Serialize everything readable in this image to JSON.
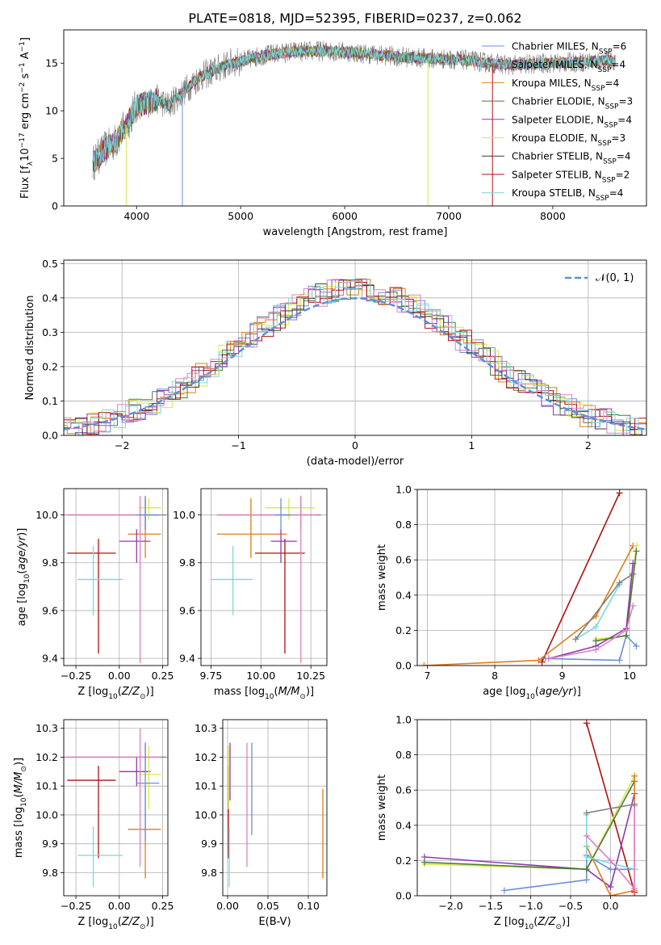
{
  "figure": {
    "title": "PLATE=0818, MJD=52395, FIBERID=0237, z=0.062"
  },
  "colors": {
    "Chabrier MILES": "#6a8fd8",
    "Salpeter MILES": "#808080",
    "Kroupa MILES": "#e07b1a",
    "Chabrier ELODIE": "#4a7a3a",
    "Salpeter ELODIE": "#8e3ab0",
    "Kroupa ELODIE": "#d8e84a",
    "Chabrier STELIB": "#3a3a3a",
    "Salpeter STELIB": "#b01010",
    "Kroupa STELIB": "#7dd8d8",
    "pink": "#e07fc0",
    "gaussian": "#5b8fd8"
  },
  "chart_data": [
    {
      "id": "spectrum",
      "type": "line",
      "title": "PLATE=0818, MJD=52395, FIBERID=0237, z=0.062",
      "xlabel": "wavelength [Angstrom, rest frame]",
      "ylabel": "Flux [fλ10⁻¹⁷ erg cm⁻² s⁻¹ A⁻¹]",
      "xlim": [
        3300,
        8900
      ],
      "ylim": [
        0,
        18.5
      ],
      "xticks": [
        4000,
        5000,
        6000,
        7000,
        8000
      ],
      "yticks": [
        0,
        5,
        10,
        15
      ],
      "grid": false,
      "legend_position": "top-right",
      "legend": [
        "Chabrier MILES, N_SSP=6",
        "Salpeter MILES, N_SSP=4",
        "Kroupa MILES, N_SSP=4",
        "Chabrier ELODIE, N_SSP=3",
        "Salpeter ELODIE, N_SSP=4",
        "Kroupa ELODIE, N_SSP=3",
        "Chabrier STELIB, N_SSP=4",
        "Salpeter STELIB, N_SSP=2",
        "Kroupa STELIB, N_SSP=4"
      ],
      "continuum": {
        "x": [
          3580,
          3700,
          3800,
          3900,
          4000,
          4100,
          4200,
          4300,
          4400,
          4500,
          4600,
          4700,
          4800,
          4900,
          5000,
          5200,
          5500,
          5800,
          6000,
          6200,
          6500,
          6800,
          7000,
          7200,
          7400,
          7600,
          7800,
          8000,
          8200,
          8400,
          8600
        ],
        "y": [
          4.5,
          6.0,
          6.8,
          8.5,
          10.5,
          10.8,
          11.2,
          10.5,
          11.5,
          12.5,
          13.5,
          14.0,
          14.5,
          15.0,
          15.2,
          15.8,
          16.2,
          16.3,
          16.2,
          16.0,
          15.7,
          15.5,
          15.4,
          15.3,
          15.0,
          14.8,
          14.9,
          15.0,
          15.1,
          15.2,
          15.3
        ]
      }
    },
    {
      "id": "residuals",
      "type": "line",
      "xlabel": "(data-model)/error",
      "ylabel": "Normed distribution",
      "xlim": [
        -2.5,
        2.5
      ],
      "ylim": [
        0,
        0.51
      ],
      "xticks": [
        -2,
        -1,
        0,
        1,
        2
      ],
      "yticks": [
        0.0,
        0.1,
        0.2,
        0.3,
        0.4,
        0.5
      ],
      "grid": true,
      "legend_position": "top-right",
      "legend": [
        "𝒩(0, 1)"
      ],
      "gaussian": {
        "mean": 0,
        "sigma": 1
      }
    },
    {
      "id": "age_vs_Z",
      "type": "scatter",
      "xlabel": "Z [log10(Z/Z⊙)]",
      "ylabel": "age  [log10(age/yr)]",
      "xlim": [
        -0.32,
        0.28
      ],
      "ylim": [
        9.37,
        10.11
      ],
      "xticks": [
        -0.25,
        0.0,
        0.25
      ],
      "yticks": [
        9.4,
        9.6,
        9.8,
        10.0
      ],
      "grid": true,
      "points": [
        {
          "model": "Salpeter STELIB",
          "x": -0.12,
          "y": 9.84,
          "xerr": [
            0.18,
            0.1
          ],
          "yerr": [
            0.42,
            0.06
          ]
        },
        {
          "model": "Kroupa STELIB",
          "x": -0.15,
          "y": 9.73,
          "xerr": [
            0.09,
            0.17
          ],
          "yerr": [
            0.15,
            0.14
          ]
        },
        {
          "model": "Salpeter MILES",
          "x": 0.15,
          "y": 10.0,
          "xerr": [
            0.45,
            0.12
          ],
          "yerr": [
            0.06,
            0.08
          ]
        },
        {
          "model": "Kroupa MILES",
          "x": 0.15,
          "y": 9.92,
          "xerr": [
            0.1,
            0.09
          ],
          "yerr": [
            0.1,
            0.15
          ]
        },
        {
          "model": "Salpeter ELODIE",
          "x": 0.1,
          "y": 9.89,
          "xerr": [
            0.1,
            0.08
          ],
          "yerr": [
            0.09,
            0.05
          ]
        },
        {
          "model": "Kroupa ELODIE",
          "x": 0.17,
          "y": 10.03,
          "xerr": [
            0.06,
            0.07
          ],
          "yerr": [
            0.05,
            0.04
          ]
        },
        {
          "model": "pink",
          "x": 0.12,
          "y": 10.0,
          "xerr": [
            0.45,
            0.12
          ],
          "yerr": [
            0.62,
            0.08
          ]
        },
        {
          "model": "Chabrier MILES",
          "x": 0.15,
          "y": 10.0,
          "xerr": [
            0.05,
            0.08
          ],
          "yerr": [
            0.06,
            0.07
          ]
        }
      ]
    },
    {
      "id": "age_vs_mass",
      "type": "scatter",
      "xlabel": "mass [log10(M/M⊙)]",
      "ylabel": "",
      "xlim": [
        9.7,
        10.33
      ],
      "ylim": [
        9.37,
        10.11
      ],
      "xticks": [
        9.75,
        10.0,
        10.25
      ],
      "yticks": [
        9.4,
        9.6,
        9.8,
        10.0
      ],
      "grid": true,
      "points": [
        {
          "model": "Salpeter STELIB",
          "x": 10.12,
          "y": 9.84,
          "xerr": [
            0.15,
            0.1
          ],
          "yerr": [
            0.42,
            0.06
          ]
        },
        {
          "model": "Kroupa STELIB",
          "x": 9.86,
          "y": 9.73,
          "xerr": [
            0.11,
            0.1
          ],
          "yerr": [
            0.15,
            0.14
          ]
        },
        {
          "model": "Salpeter MILES",
          "x": 10.2,
          "y": 10.0,
          "xerr": [
            0.42,
            0.1
          ],
          "yerr": [
            0.06,
            0.08
          ]
        },
        {
          "model": "Kroupa MILES",
          "x": 9.95,
          "y": 9.92,
          "xerr": [
            0.17,
            0.18
          ],
          "yerr": [
            0.1,
            0.15
          ]
        },
        {
          "model": "Salpeter ELODIE",
          "x": 10.1,
          "y": 9.89,
          "xerr": [
            0.05,
            0.08
          ],
          "yerr": [
            0.09,
            0.05
          ]
        },
        {
          "model": "Kroupa ELODIE",
          "x": 10.14,
          "y": 10.03,
          "xerr": [
            0.12,
            0.13
          ],
          "yerr": [
            0.05,
            0.04
          ]
        },
        {
          "model": "pink",
          "x": 10.2,
          "y": 10.0,
          "xerr": [
            0.42,
            0.08
          ],
          "yerr": [
            0.62,
            0.08
          ]
        },
        {
          "model": "Chabrier MILES",
          "x": 10.1,
          "y": 10.0,
          "xerr": [
            0.03,
            0.05
          ],
          "yerr": [
            0.06,
            0.07
          ]
        }
      ]
    },
    {
      "id": "mass_weight_vs_age",
      "type": "line",
      "xlabel": "age  [log10(age/yr)]",
      "ylabel": "mass weight",
      "xlim": [
        6.85,
        10.25
      ],
      "ylim": [
        0,
        1.0
      ],
      "xticks": [
        7,
        8,
        9,
        10
      ],
      "yticks": [
        0.0,
        0.2,
        0.4,
        0.6,
        0.8,
        1.0
      ],
      "grid": true,
      "series": [
        {
          "model": "Salpeter STELIB",
          "x": [
            8.7,
            9.85
          ],
          "y": [
            0.02,
            0.98
          ]
        },
        {
          "model": "Kroupa MILES",
          "x": [
            6.95,
            8.65,
            9.5,
            10.05
          ],
          "y": [
            0.0,
            0.03,
            0.28,
            0.68
          ]
        },
        {
          "model": "Chabrier MILES",
          "x": [
            8.75,
            9.85,
            9.95,
            10.1
          ],
          "y": [
            0.04,
            0.03,
            0.17,
            0.11
          ]
        },
        {
          "model": "Kroupa STELIB",
          "x": [
            9.2,
            9.5,
            9.85
          ],
          "y": [
            0.15,
            0.22,
            0.46
          ]
        },
        {
          "model": "Salpeter MILES",
          "x": [
            9.2,
            9.85,
            10.05
          ],
          "y": [
            0.15,
            0.47,
            0.52
          ]
        },
        {
          "model": "Kroupa ELODIE",
          "x": [
            9.5,
            9.95,
            10.1
          ],
          "y": [
            0.15,
            0.17,
            0.68
          ]
        },
        {
          "model": "Salpeter ELODIE",
          "x": [
            8.8,
            9.5,
            9.95,
            10.05
          ],
          "y": [
            0.04,
            0.11,
            0.21,
            0.58
          ]
        },
        {
          "model": "Chabrier ELODIE",
          "x": [
            9.5,
            9.95,
            10.1
          ],
          "y": [
            0.14,
            0.17,
            0.65
          ]
        },
        {
          "model": "pink",
          "x": [
            8.8,
            9.5,
            9.95,
            10.05
          ],
          "y": [
            0.04,
            0.09,
            0.2,
            0.34
          ]
        }
      ]
    },
    {
      "id": "mass_vs_Z",
      "type": "scatter",
      "xlabel": "Z [log10(Z/Z⊙)]",
      "ylabel": "mass [log10(M/M⊙)]",
      "xlim": [
        -0.32,
        0.28
      ],
      "ylim": [
        9.72,
        10.33
      ],
      "xticks": [
        -0.25,
        0.0,
        0.25
      ],
      "yticks": [
        9.8,
        9.9,
        10.0,
        10.1,
        10.2,
        10.3
      ],
      "grid": true,
      "points": [
        {
          "model": "Salpeter STELIB",
          "x": -0.12,
          "y": 10.12,
          "xerr": [
            0.18,
            0.1
          ],
          "yerr": [
            0.27,
            0.05
          ]
        },
        {
          "model": "Kroupa STELIB",
          "x": -0.15,
          "y": 9.86,
          "xerr": [
            0.09,
            0.17
          ],
          "yerr": [
            0.11,
            0.1
          ]
        },
        {
          "model": "Salpeter MILES",
          "x": 0.15,
          "y": 10.2,
          "xerr": [
            0.45,
            0.12
          ],
          "yerr": [
            0.05,
            0.05
          ]
        },
        {
          "model": "Kroupa MILES",
          "x": 0.15,
          "y": 9.95,
          "xerr": [
            0.1,
            0.09
          ],
          "yerr": [
            0.17,
            0.15
          ]
        },
        {
          "model": "Salpeter ELODIE",
          "x": 0.1,
          "y": 10.15,
          "xerr": [
            0.1,
            0.08
          ],
          "yerr": [
            0.05,
            0.05
          ]
        },
        {
          "model": "Kroupa ELODIE",
          "x": 0.17,
          "y": 10.14,
          "xerr": [
            0.06,
            0.07
          ],
          "yerr": [
            0.12,
            0.1
          ]
        },
        {
          "model": "pink",
          "x": 0.12,
          "y": 10.2,
          "xerr": [
            0.45,
            0.12
          ],
          "yerr": [
            0.38,
            0.1
          ]
        },
        {
          "model": "Chabrier MILES",
          "x": 0.15,
          "y": 10.11,
          "xerr": [
            0.05,
            0.08
          ],
          "yerr": [
            0.2,
            0.14
          ]
        }
      ]
    },
    {
      "id": "mass_vs_EBV",
      "type": "scatter",
      "xlabel": "E(B-V)",
      "ylabel": "",
      "xlim": [
        -0.006,
        0.123
      ],
      "ylim": [
        9.72,
        10.33
      ],
      "xticks": [
        0.0,
        0.05,
        0.1
      ],
      "yticks": [
        9.8,
        9.9,
        10.0,
        10.1,
        10.2,
        10.3
      ],
      "grid": true,
      "points": [
        {
          "model": "Salpeter STELIB",
          "x": 0.001,
          "y": 10.12,
          "yerr": [
            0.27,
            0.05
          ]
        },
        {
          "model": "Kroupa STELIB",
          "x": 0.002,
          "y": 9.86,
          "yerr": [
            0.11,
            0.1
          ]
        },
        {
          "model": "Salpeter ELODIE",
          "x": 0.003,
          "y": 10.15,
          "yerr": [
            0.1,
            0.1
          ]
        },
        {
          "model": "Kroupa ELODIE",
          "x": 0.001,
          "y": 10.14,
          "yerr": [
            0.12,
            0.1
          ]
        },
        {
          "model": "pink",
          "x": 0.024,
          "y": 10.05,
          "yerr": [
            0.23,
            0.2
          ]
        },
        {
          "model": "Chabrier MILES",
          "x": 0.03,
          "y": 10.09,
          "yerr": [
            0.16,
            0.16
          ]
        },
        {
          "model": "Kroupa MILES",
          "x": 0.118,
          "y": 9.93,
          "yerr": [
            0.15,
            0.16
          ]
        }
      ]
    },
    {
      "id": "mass_weight_vs_Z",
      "type": "line",
      "xlabel": "Z [log10(Z/Z⊙)]",
      "ylabel": "mass weight",
      "xlim": [
        -2.42,
        0.45
      ],
      "ylim": [
        0,
        1.0
      ],
      "xticks": [
        -2.0,
        -1.5,
        -1.0,
        -0.5,
        0.0
      ],
      "yticks": [
        0.0,
        0.2,
        0.4,
        0.6,
        0.8,
        1.0
      ],
      "grid": true,
      "series": [
        {
          "model": "Salpeter STELIB",
          "x": [
            -0.3,
            0.3
          ],
          "y": [
            0.98,
            0.02
          ]
        },
        {
          "model": "Chabrier MILES",
          "x": [
            -1.33,
            -0.3,
            -0.3,
            0.0,
            0.3
          ],
          "y": [
            0.03,
            0.09,
            0.23,
            0.15,
            0.15
          ]
        },
        {
          "model": "Salpeter ELODIE",
          "x": [
            -2.33,
            -0.3,
            0.0,
            0.3
          ],
          "y": [
            0.22,
            0.15,
            0.05,
            0.58
          ]
        },
        {
          "model": "Kroupa ELODIE",
          "x": [
            -2.33,
            -0.3,
            0.3
          ],
          "y": [
            0.18,
            0.15,
            0.68
          ]
        },
        {
          "model": "Chabrier ELODIE",
          "x": [
            -2.33,
            -0.3,
            0.3
          ],
          "y": [
            0.19,
            0.15,
            0.65
          ]
        },
        {
          "model": "Kroupa MILES",
          "x": [
            -0.3,
            0.0,
            0.3,
            0.3
          ],
          "y": [
            0.28,
            0.0,
            0.03,
            0.68
          ]
        },
        {
          "model": "Kroupa STELIB",
          "x": [
            -0.3,
            -0.3,
            0.3
          ],
          "y": [
            0.46,
            0.22,
            0.15
          ]
        },
        {
          "model": "pink",
          "x": [
            -0.3,
            0.0,
            0.3,
            0.3
          ],
          "y": [
            0.34,
            0.2,
            0.04,
            0.51
          ]
        },
        {
          "model": "Salpeter MILES",
          "x": [
            -0.3,
            0.3
          ],
          "y": [
            0.47,
            0.52
          ]
        }
      ]
    }
  ]
}
